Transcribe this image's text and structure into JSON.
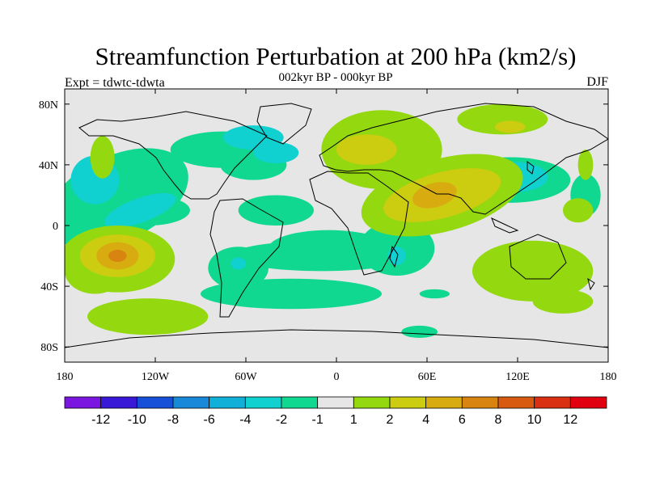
{
  "chart_data": {
    "type": "heatmap",
    "title": "Streamfunction Perturbation at 200 hPa (km2/s)",
    "subtitle": "002kyr BP - 000kyr BP",
    "left_label": "Expt = tdwtc-tdwta",
    "right_label": "DJF",
    "x_ticks": [
      "180",
      "120W",
      "60W",
      "0",
      "60E",
      "120E",
      "180"
    ],
    "x_tick_values": [
      -180,
      -120,
      -60,
      0,
      60,
      120,
      180
    ],
    "y_ticks": [
      "80N",
      "40N",
      "0",
      "40S",
      "80S"
    ],
    "y_tick_values": [
      80,
      40,
      0,
      -40,
      -80
    ],
    "xlim": [
      -180,
      180
    ],
    "ylim": [
      -90,
      90
    ],
    "colorbar": {
      "colors": [
        "#7a16e0",
        "#3a18d8",
        "#1650d8",
        "#1888d8",
        "#10b0d8",
        "#10d0d0",
        "#10d890",
        "#e6e6e6",
        "#94d810",
        "#cccc10",
        "#d8ac10",
        "#d88410",
        "#d85a10",
        "#d83010",
        "#e00010"
      ],
      "labels": [
        "-12",
        "-10",
        "-8",
        "-6",
        "-4",
        "-2",
        "-1",
        "1",
        "2",
        "4",
        "6",
        "8",
        "10",
        "12"
      ]
    },
    "field_levels": [
      {
        "color": "#10d890",
        "blobs": [
          [
            -145,
            18,
            50,
            28,
            -25
          ],
          [
            -125,
            10,
            28,
            10,
            0
          ],
          [
            -75,
            50,
            35,
            12,
            0
          ],
          [
            -55,
            40,
            22,
            10,
            0
          ],
          [
            -40,
            10,
            25,
            10,
            0
          ],
          [
            -65,
            -28,
            20,
            14,
            0
          ],
          [
            -5,
            -15,
            40,
            12,
            0
          ],
          [
            40,
            -15,
            25,
            18,
            0
          ],
          [
            65,
            -45,
            10,
            3,
            0
          ],
          [
            55,
            -70,
            12,
            4,
            0
          ],
          [
            115,
            30,
            40,
            15,
            0
          ],
          [
            165,
            20,
            10,
            14,
            0
          ],
          [
            -30,
            -45,
            60,
            10,
            0
          ],
          [
            -10,
            -20,
            60,
            10,
            0
          ]
        ]
      },
      {
        "color": "#10d0d0",
        "blobs": [
          [
            -160,
            30,
            16,
            16,
            0
          ],
          [
            -130,
            10,
            25,
            8,
            -20
          ],
          [
            -55,
            58,
            20,
            8,
            0
          ],
          [
            -40,
            48,
            15,
            7,
            0
          ],
          [
            118,
            32,
            22,
            10,
            0
          ],
          [
            -65,
            -25,
            5,
            4,
            0
          ],
          [
            40,
            -20,
            6,
            6,
            0
          ]
        ]
      },
      {
        "color": "#94d810",
        "blobs": [
          [
            -145,
            -22,
            38,
            22,
            0
          ],
          [
            -160,
            -30,
            20,
            15,
            0
          ],
          [
            -125,
            -60,
            40,
            12,
            0
          ],
          [
            30,
            50,
            40,
            26,
            0
          ],
          [
            70,
            20,
            55,
            24,
            -15
          ],
          [
            110,
            70,
            30,
            10,
            0
          ],
          [
            130,
            -30,
            40,
            20,
            0
          ],
          [
            150,
            -50,
            20,
            8,
            0
          ],
          [
            165,
            40,
            5,
            10,
            0
          ],
          [
            -155,
            45,
            8,
            14,
            0
          ],
          [
            160,
            10,
            10,
            8,
            0
          ]
        ]
      },
      {
        "color": "#cccc10",
        "blobs": [
          [
            -145,
            -20,
            25,
            14,
            0
          ],
          [
            20,
            50,
            20,
            10,
            0
          ],
          [
            70,
            20,
            40,
            15,
            -15
          ],
          [
            115,
            65,
            10,
            4,
            0
          ]
        ]
      },
      {
        "color": "#d8ac10",
        "blobs": [
          [
            -145,
            -20,
            14,
            9,
            0
          ],
          [
            65,
            20,
            15,
            8,
            -15
          ]
        ]
      },
      {
        "color": "#d88410",
        "blobs": [
          [
            -145,
            -20,
            6,
            4,
            0
          ]
        ]
      }
    ]
  }
}
